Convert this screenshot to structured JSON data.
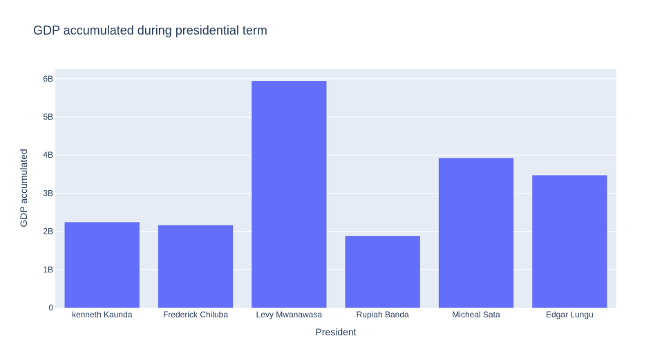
{
  "chart_data": {
    "type": "bar",
    "title": "GDP accumulated during presidential term",
    "xlabel": "President",
    "ylabel": "GDP accumulated",
    "categories": [
      "kenneth Kaunda",
      "Frederick Chiluba",
      "Levy Mwanawasa",
      "Rupiah Banda",
      "Micheal Sata",
      "Edgar Lungu"
    ],
    "values": [
      2240000000,
      2160000000,
      5940000000,
      1880000000,
      3920000000,
      3470000000
    ],
    "ylim": [
      0,
      6250000000
    ],
    "yticks": [
      0,
      1000000000,
      2000000000,
      3000000000,
      4000000000,
      5000000000,
      6000000000
    ],
    "ytick_labels": [
      "0",
      "1B",
      "2B",
      "3B",
      "4B",
      "5B",
      "6B"
    ],
    "grid": true,
    "colors": {
      "bar": "#636efa",
      "plot_bg": "#e5ecf6",
      "grid": "#ffffff",
      "text": "#2a3f5f"
    }
  }
}
